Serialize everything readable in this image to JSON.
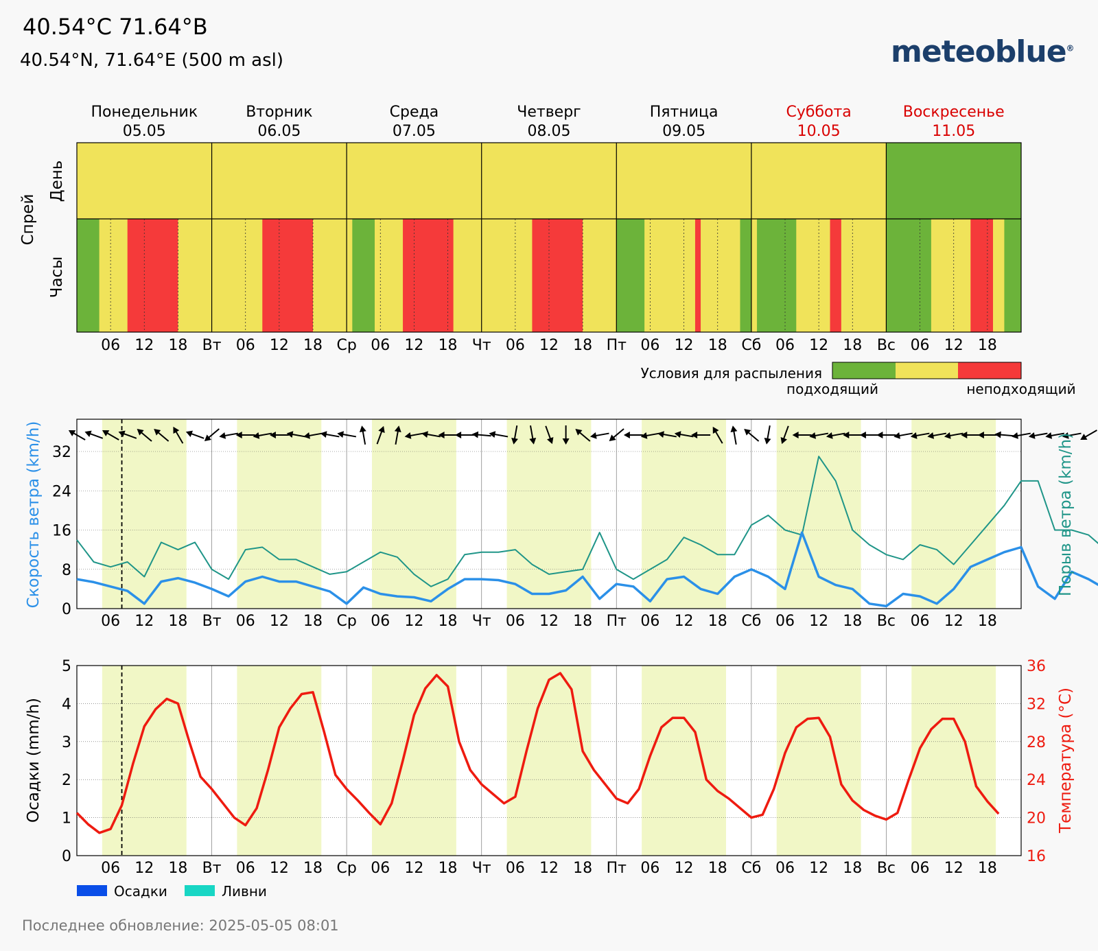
{
  "header": {
    "title": "40.54°C 71.64°B",
    "subtitle": "40.54°N, 71.64°E (500 m asl)",
    "logo": "meteoblue",
    "logo_mark": "®"
  },
  "footer": {
    "last_update": "Последнее обновление: 2025-05-05 08:01"
  },
  "colors": {
    "suitable": "#6cb33a",
    "moderate": "#f0e35a",
    "unsuitable": "#f53a3a",
    "daylight": "#f1f7c6",
    "wind": "#2b90e8",
    "gust": "#1f9588",
    "temperature": "#ee1b10",
    "precip": "#0a4ee8",
    "shower": "#18d6c4",
    "weekend": "#d90000"
  },
  "days": [
    {
      "name": "Понедельник",
      "date": "05.05",
      "short": "",
      "weekend": false
    },
    {
      "name": "Вторник",
      "date": "06.05",
      "short": "Вт",
      "weekend": false
    },
    {
      "name": "Среда",
      "date": "07.05",
      "short": "Ср",
      "weekend": false
    },
    {
      "name": "Четверг",
      "date": "08.05",
      "short": "Чт",
      "weekend": false
    },
    {
      "name": "Пятница",
      "date": "09.05",
      "short": "Пт",
      "weekend": false
    },
    {
      "name": "Суббота",
      "date": "10.05",
      "short": "Сб",
      "weekend": true
    },
    {
      "name": "Воскресенье",
      "date": "11.05",
      "short": "Вс",
      "weekend": true
    }
  ],
  "hour_ticks": [
    "06",
    "12",
    "18"
  ],
  "spray_panel": {
    "ylabel": "Спрей",
    "row_day": "День",
    "row_hours": "Часы",
    "legend_title": "Условия для распыления",
    "legend_low": "подходящий",
    "legend_high": "неподходящий"
  },
  "wind_panel": {
    "ylabel_left": "Скорость ветра (km/h)",
    "ylabel_right": "Порыв ветра (km/h)",
    "yticks": [
      0,
      8,
      16,
      24,
      32
    ]
  },
  "precip_panel": {
    "ylabel_left": "Осадки (mm/h)",
    "ylabel_right": "Температура (°C)",
    "yticks_left": [
      0,
      1,
      2,
      3,
      4,
      5
    ],
    "yticks_right": [
      16,
      20,
      24,
      28,
      32,
      36
    ],
    "legend_precip": "Осадки",
    "legend_showers": "Ливни"
  },
  "chart_data": [
    {
      "type": "heatmap",
      "title": "Спрей",
      "categories": [
        "подходящий",
        "",
        "неподходящий"
      ],
      "day_rating": [
        "moderate",
        "moderate",
        "moderate",
        "moderate",
        "moderate",
        "moderate",
        "suitable"
      ],
      "hourly_segments": [
        [
          {
            "from": 0,
            "to": 4,
            "rating": "suitable"
          },
          {
            "from": 4,
            "to": 9,
            "rating": "moderate"
          },
          {
            "from": 9,
            "to": 18,
            "rating": "unsuitable"
          },
          {
            "from": 18,
            "to": 24,
            "rating": "moderate"
          }
        ],
        [
          {
            "from": 0,
            "to": 9,
            "rating": "moderate"
          },
          {
            "from": 9,
            "to": 18,
            "rating": "unsuitable"
          },
          {
            "from": 18,
            "to": 24,
            "rating": "moderate"
          }
        ],
        [
          {
            "from": 0,
            "to": 1,
            "rating": "moderate"
          },
          {
            "from": 1,
            "to": 5,
            "rating": "suitable"
          },
          {
            "from": 5,
            "to": 10,
            "rating": "moderate"
          },
          {
            "from": 10,
            "to": 19,
            "rating": "unsuitable"
          },
          {
            "from": 19,
            "to": 24,
            "rating": "moderate"
          }
        ],
        [
          {
            "from": 0,
            "to": 9,
            "rating": "moderate"
          },
          {
            "from": 9,
            "to": 18,
            "rating": "unsuitable"
          },
          {
            "from": 18,
            "to": 24,
            "rating": "moderate"
          }
        ],
        [
          {
            "from": 0,
            "to": 5,
            "rating": "suitable"
          },
          {
            "from": 5,
            "to": 14,
            "rating": "moderate"
          },
          {
            "from": 14,
            "to": 15,
            "rating": "unsuitable"
          },
          {
            "from": 15,
            "to": 22,
            "rating": "moderate"
          },
          {
            "from": 22,
            "to": 24,
            "rating": "suitable"
          }
        ],
        [
          {
            "from": 0,
            "to": 1,
            "rating": "moderate"
          },
          {
            "from": 1,
            "to": 8,
            "rating": "suitable"
          },
          {
            "from": 8,
            "to": 14,
            "rating": "moderate"
          },
          {
            "from": 14,
            "to": 16,
            "rating": "unsuitable"
          },
          {
            "from": 16,
            "to": 24,
            "rating": "moderate"
          }
        ],
        [
          {
            "from": 0,
            "to": 8,
            "rating": "suitable"
          },
          {
            "from": 8,
            "to": 15,
            "rating": "moderate"
          },
          {
            "from": 15,
            "to": 19,
            "rating": "unsuitable"
          },
          {
            "from": 19,
            "to": 21,
            "rating": "moderate"
          },
          {
            "from": 21,
            "to": 24,
            "rating": "suitable"
          }
        ]
      ]
    },
    {
      "type": "line",
      "xlabel": "",
      "ylabel": "Скорость ветра (km/h)",
      "ylim": [
        0,
        38
      ],
      "now_hour": 8,
      "x_hours_step": 3,
      "series": [
        {
          "name": "Скорость ветра",
          "values": [
            6,
            5.4,
            4.5,
            3.6,
            1,
            5.5,
            6.2,
            5.3,
            4,
            2.5,
            5.5,
            6.5,
            5.5,
            5.5,
            4.5,
            3.5,
            1,
            4.3,
            3,
            2.5,
            2.3,
            1.5,
            4,
            6,
            6,
            5.8,
            5,
            3,
            3,
            3.7,
            6.5,
            2,
            5,
            4.5,
            1.5,
            6,
            6.5,
            4,
            3,
            6.5,
            8,
            6.5,
            4,
            15.5,
            6.5,
            4.8,
            4,
            1,
            0.5,
            3,
            2.5,
            1,
            4,
            8.5,
            10,
            11.5,
            12.5,
            4.5,
            2,
            7.5,
            6,
            4,
            1.5,
            0.8,
            3,
            5.5,
            7.5,
            8.2,
            9,
            7,
            4,
            4,
            6,
            5,
            3,
            2,
            2,
            4.5,
            5.5,
            5.3,
            4.8,
            2,
            2,
            5,
            6.2,
            6.2
          ]
        },
        {
          "name": "Порыв ветра",
          "values": [
            14,
            9.5,
            8.5,
            9.5,
            6.5,
            13.5,
            12,
            13.5,
            8,
            6,
            12,
            12.5,
            10,
            10,
            8.5,
            7,
            7.5,
            9.5,
            11.5,
            10.5,
            7,
            4.5,
            6,
            11,
            11.5,
            11.5,
            12,
            9,
            7,
            7.5,
            8,
            15.5,
            8,
            6,
            8,
            10,
            14.5,
            13,
            11,
            11,
            17,
            19,
            16,
            15,
            31,
            26,
            16,
            13,
            11,
            10,
            13,
            12,
            9,
            13,
            17,
            21,
            26,
            26,
            16,
            16,
            15,
            12,
            8,
            4,
            8,
            14,
            20,
            21,
            16,
            15.5,
            15.5,
            12,
            12,
            11,
            10,
            11,
            10,
            11,
            18.5,
            16,
            15.5,
            14,
            11,
            11,
            12,
            11.5
          ]
        }
      ],
      "wind_direction": "arrows per 3 h"
    },
    {
      "type": "line",
      "xlabel": "",
      "ylabel": "Температура (°C)",
      "ylim": [
        16,
        36
      ],
      "series": [
        {
          "name": "Температура",
          "values": [
            20.5,
            19.3,
            18.4,
            18.8,
            21.3,
            25.7,
            29.6,
            31.4,
            32.5,
            32,
            28,
            24.3,
            23,
            21.5,
            20,
            19.2,
            21,
            25,
            29.5,
            31.5,
            33,
            33.2,
            29,
            24.5,
            23,
            21.8,
            20.5,
            19.3,
            21.5,
            26,
            30.8,
            33.6,
            35,
            33.8,
            28,
            25,
            23.5,
            22.5,
            21.5,
            22.2,
            27,
            31.5,
            34.5,
            35.2,
            33.5,
            27,
            25,
            23.5,
            22,
            21.5,
            23,
            26.5,
            29.5,
            30.5,
            30.5,
            29,
            24,
            22.8,
            22,
            21,
            20,
            20.3,
            23,
            26.8,
            29.5,
            30.4,
            30.5,
            28.5,
            23.5,
            21.8,
            20.8,
            20.2,
            19.8,
            20.5,
            24,
            27.3,
            29.3,
            30.4,
            30.4,
            28,
            23.3,
            21.7,
            20.4
          ]
        },
        {
          "name": "Осадки",
          "values": [
            0,
            0,
            0,
            0,
            0,
            0,
            0,
            0,
            0,
            0,
            0,
            0,
            0,
            0,
            0,
            0,
            0,
            0,
            0,
            0,
            0,
            0,
            0,
            0,
            0,
            0,
            0,
            0,
            0,
            0,
            0,
            0,
            0,
            0,
            0,
            0,
            0,
            0,
            0,
            0,
            0,
            0,
            0,
            0,
            0,
            0,
            0,
            0,
            0,
            0,
            0,
            0,
            0,
            0,
            0,
            0,
            0,
            0,
            0,
            0,
            0,
            0,
            0,
            0,
            0,
            0,
            0,
            0,
            0,
            0.04,
            0.05,
            0.03,
            0,
            0,
            0,
            0,
            0,
            0,
            0,
            0,
            0,
            0,
            0,
            0,
            0,
            0
          ]
        }
      ]
    }
  ]
}
